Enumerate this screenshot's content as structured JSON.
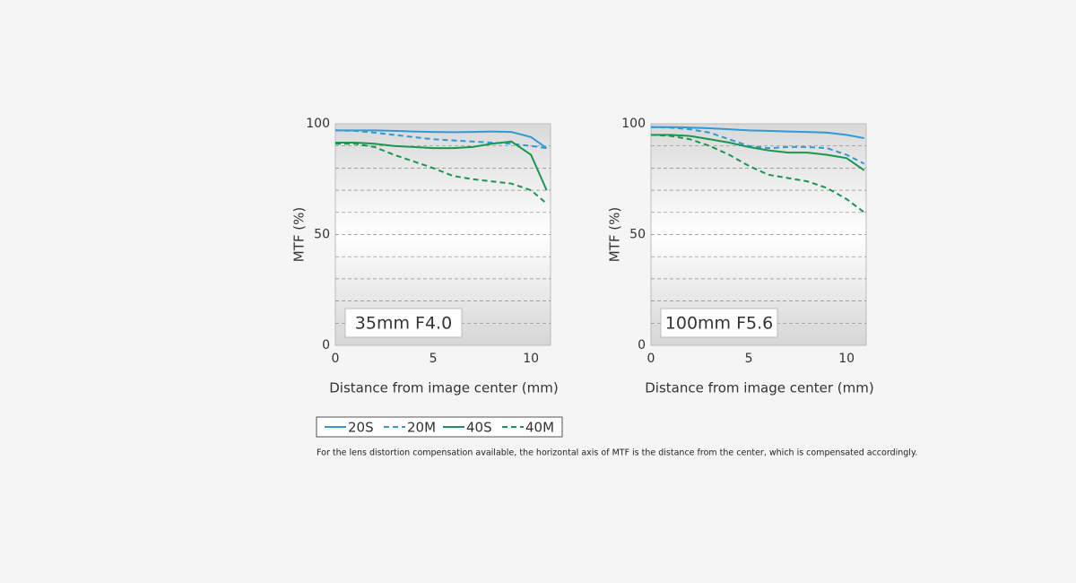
{
  "chart_data": [
    {
      "type": "line",
      "label": "35mm F4.0",
      "ylabel": "MTF (%)",
      "xlabel": "Distance from image center (mm)",
      "x": [
        0,
        1,
        2,
        3,
        4,
        5,
        6,
        7,
        8,
        9,
        10,
        10.8
      ],
      "xlim": [
        0,
        11
      ],
      "xticks": [
        0,
        5,
        10
      ],
      "ylim": [
        0,
        100
      ],
      "yticks": [
        0,
        50,
        100
      ],
      "ygrid": [
        10,
        20,
        30,
        40,
        50,
        60,
        70,
        80,
        90
      ],
      "series": [
        {
          "name": "20S",
          "color": "#2e9ad6",
          "dashed": false,
          "values": [
            97,
            97,
            97,
            96.8,
            96.5,
            96.3,
            96.2,
            96.3,
            96.5,
            96.3,
            94,
            89
          ]
        },
        {
          "name": "20M",
          "color": "#2e9ad6",
          "dashed": true,
          "values": [
            97,
            96.8,
            96,
            95,
            94,
            93,
            92.5,
            92,
            91.5,
            91,
            90,
            89
          ]
        },
        {
          "name": "40S",
          "color": "#1a9650",
          "dashed": false,
          "values": [
            91.5,
            91.5,
            91,
            90,
            89.5,
            89,
            89,
            89.5,
            91,
            92,
            86,
            70
          ]
        },
        {
          "name": "40M",
          "color": "#1a9650",
          "dashed": true,
          "values": [
            91,
            91,
            89.5,
            86,
            83,
            80,
            76.5,
            75,
            74,
            73,
            70,
            64
          ]
        }
      ]
    },
    {
      "type": "line",
      "label": "100mm F5.6",
      "ylabel": "MTF (%)",
      "xlabel": "Distance from image center (mm)",
      "x": [
        0,
        1,
        2,
        3,
        4,
        5,
        6,
        7,
        8,
        9,
        10,
        10.9
      ],
      "xlim": [
        0,
        11
      ],
      "xticks": [
        0,
        5,
        10
      ],
      "ylim": [
        0,
        100
      ],
      "yticks": [
        0,
        50,
        100
      ],
      "ygrid": [
        10,
        20,
        30,
        40,
        50,
        60,
        70,
        80,
        90
      ],
      "series": [
        {
          "name": "20S",
          "color": "#2e9ad6",
          "dashed": false,
          "values": [
            98.5,
            98.5,
            98.3,
            98,
            97.5,
            97,
            96.8,
            96.5,
            96.3,
            96,
            95,
            93.5
          ]
        },
        {
          "name": "20M",
          "color": "#2e9ad6",
          "dashed": true,
          "values": [
            98.5,
            98.3,
            97.5,
            96,
            93,
            90,
            89,
            89.5,
            89.5,
            89,
            86,
            82
          ]
        },
        {
          "name": "40S",
          "color": "#1a9650",
          "dashed": false,
          "values": [
            95,
            95,
            94.5,
            93,
            91.5,
            89.5,
            88,
            87,
            87,
            86,
            84.5,
            79
          ]
        },
        {
          "name": "40M",
          "color": "#1a9650",
          "dashed": true,
          "values": [
            95,
            94.5,
            93,
            90,
            86,
            81,
            77,
            75.5,
            74,
            71,
            66,
            60
          ]
        }
      ]
    }
  ],
  "note": "For the lens distortion compensation available, the horizontal axis of MTF is the distance from the center, which is compensated accordingly."
}
